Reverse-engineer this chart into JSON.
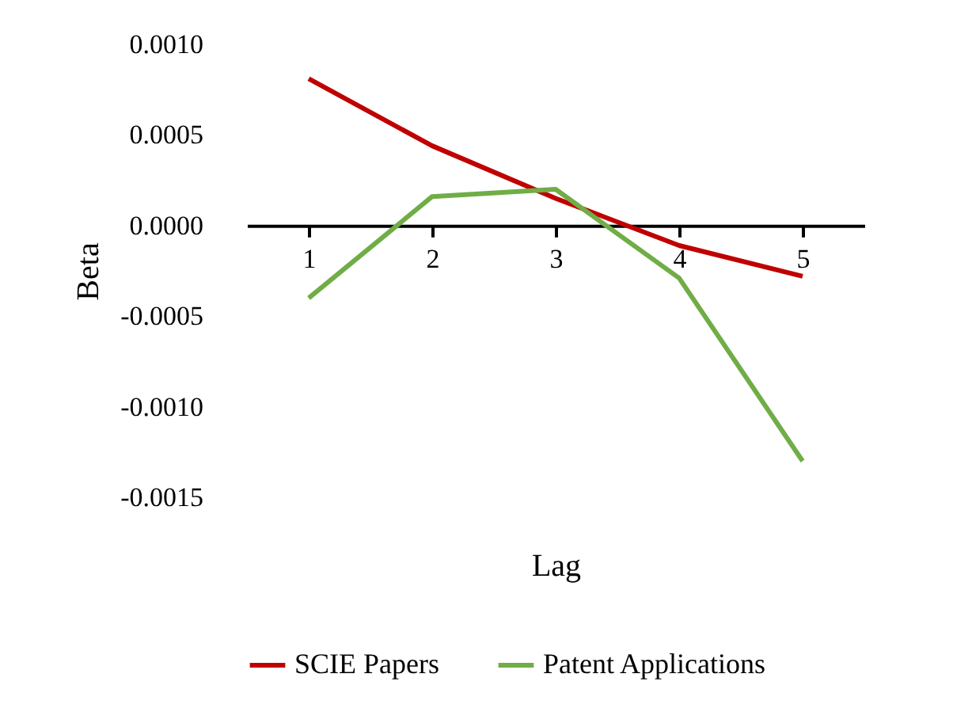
{
  "chart_data": {
    "type": "line",
    "xlabel": "Lag",
    "ylabel": "Beta",
    "categories": [
      "1",
      "2",
      "3",
      "4",
      "5"
    ],
    "series": [
      {
        "name": "SCIE Papers",
        "color": "#c00000",
        "values": [
          0.00081,
          0.00044,
          0.00015,
          -0.00011,
          -0.00028
        ]
      },
      {
        "name": "Patent Applications",
        "color": "#70ad47",
        "values": [
          -0.0004,
          0.00016,
          0.0002,
          -0.00029,
          -0.0013
        ]
      }
    ],
    "ylim": [
      -0.0015,
      0.001
    ],
    "yticks": [
      {
        "value": -0.0015,
        "label": "-0.0015"
      },
      {
        "value": -0.001,
        "label": "-0.0010"
      },
      {
        "value": -0.0005,
        "label": "-0.0005"
      },
      {
        "value": 0,
        "label": "0.0000"
      },
      {
        "value": 0.0005,
        "label": "0.0005"
      },
      {
        "value": 0.001,
        "label": "0.0010"
      }
    ],
    "grid": false,
    "legend": "bottom",
    "marker": "none",
    "line_style": "solid"
  }
}
